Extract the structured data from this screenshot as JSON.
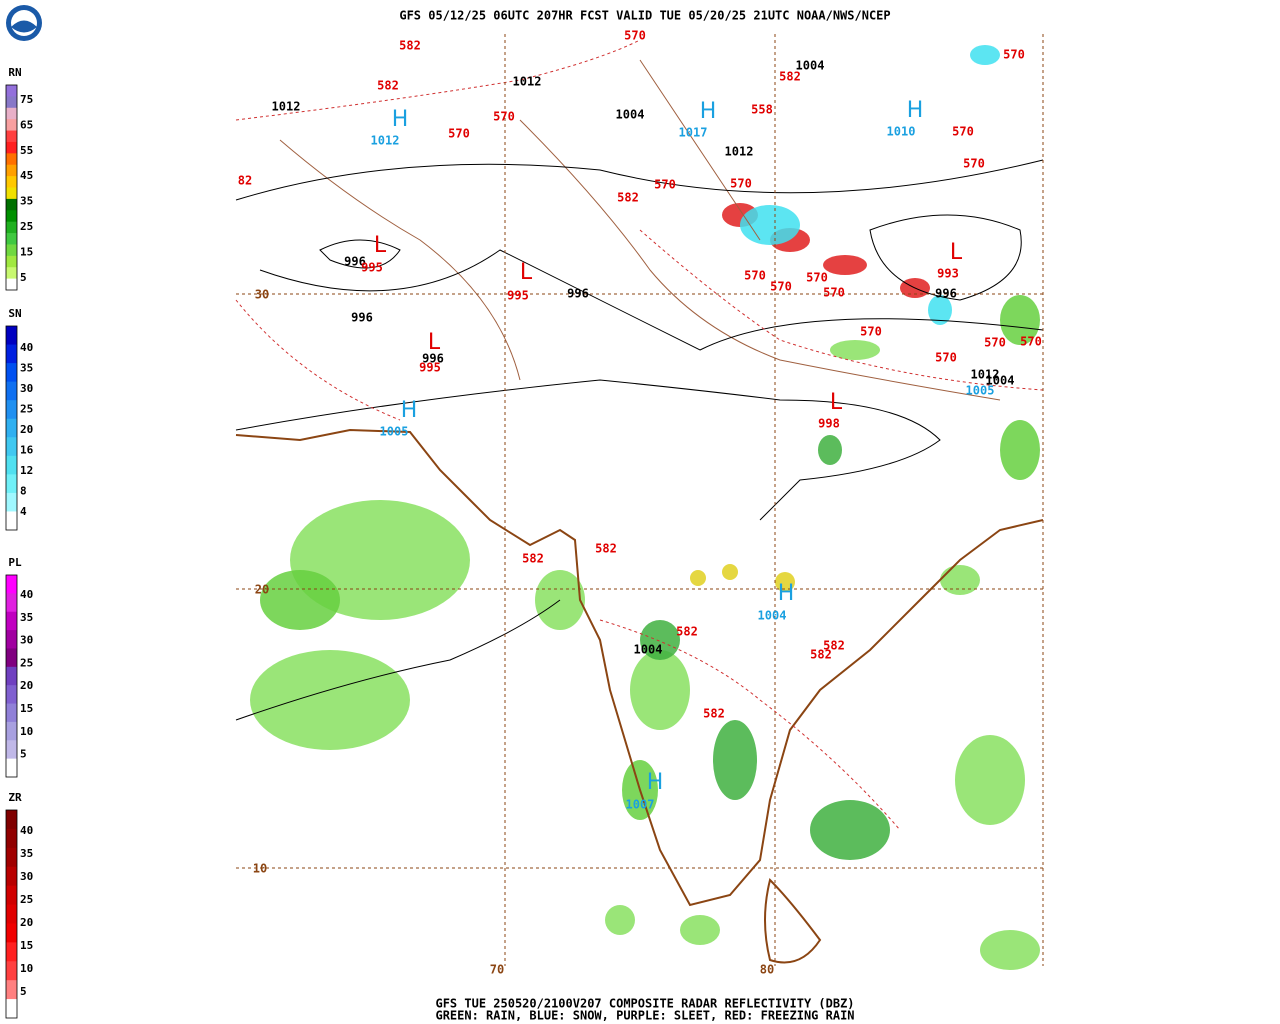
{
  "header": {
    "title": "GFS 05/12/25 06UTC 207HR FCST VALID TUE 05/20/25 21UTC NOAA/NWS/NCEP"
  },
  "footer": {
    "line1": "GFS TUE 250520/2100V207 COMPOSITE RADAR REFLECTIVITY (DBZ)",
    "line2": "GREEN: RAIN, BLUE: SNOW, PURPLE: SLEET, RED: FREEZING RAIN"
  },
  "legends": [
    {
      "title": "RN",
      "labels": [
        75,
        65,
        55,
        45,
        35,
        25,
        15,
        5
      ]
    },
    {
      "title": "SN",
      "labels": [
        40,
        35,
        30,
        25,
        20,
        16,
        12,
        8,
        4
      ]
    },
    {
      "title": "PL",
      "labels": [
        40,
        35,
        30,
        25,
        20,
        15,
        10,
        5
      ]
    },
    {
      "title": "ZR",
      "labels": [
        40,
        35,
        30,
        25,
        20,
        15,
        10,
        5
      ]
    }
  ],
  "map": {
    "lat_labels": [
      "30",
      "20",
      "10"
    ],
    "lon_labels": [
      "70",
      "80"
    ],
    "labels": [
      "582",
      "570",
      "1004",
      "582",
      "570",
      "582",
      "1012",
      "1012",
      "H",
      "1012",
      "570",
      "570",
      "1004",
      "H",
      "1017",
      "558",
      "H",
      "1010",
      "570",
      "1012",
      "570",
      "82",
      "570",
      "570",
      "582",
      "L",
      "996",
      "995",
      "L",
      "995",
      "996",
      "L",
      "993",
      "996",
      "570",
      "570",
      "570",
      "570",
      "996",
      "L",
      "996",
      "995",
      "570",
      "570",
      "570",
      "570",
      "1012",
      "1004",
      "1005",
      "H",
      "1005",
      "L",
      "998",
      "582",
      "582",
      "H",
      "1004",
      "582",
      "582",
      "582",
      "1004",
      "582",
      "H",
      "1007"
    ]
  }
}
